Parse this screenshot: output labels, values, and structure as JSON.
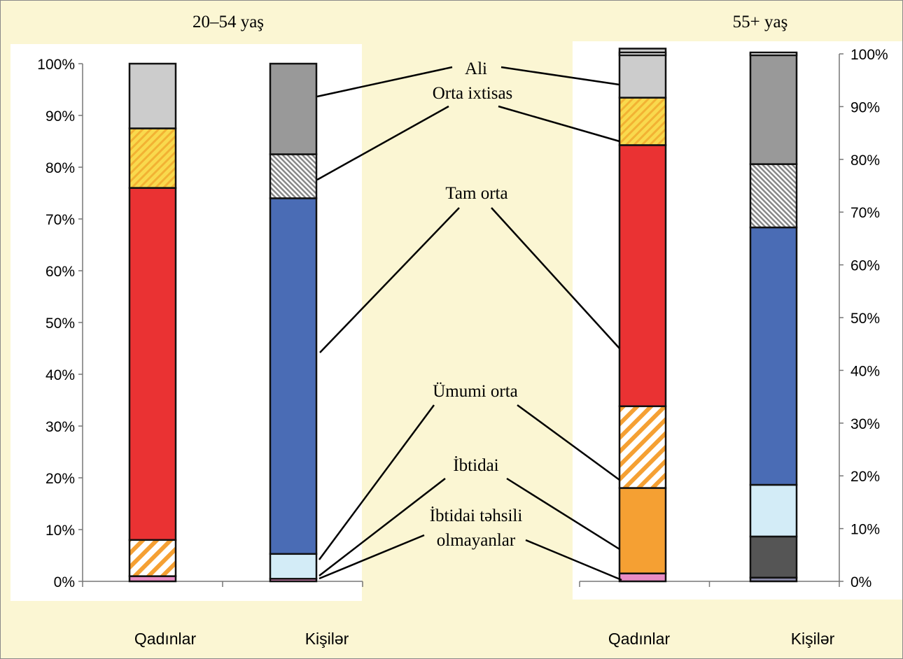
{
  "chart_data": {
    "type": "bar",
    "stacked": true,
    "normalized": true,
    "ylim": [
      0,
      100
    ],
    "y_ticks": [
      "0%",
      "10%",
      "20%",
      "30%",
      "40%",
      "50%",
      "60%",
      "70%",
      "80%",
      "90%",
      "100%"
    ],
    "categories": [
      "Qadınlar",
      "Kişilər"
    ],
    "groups": [
      {
        "title": "20–54 yaş",
        "axis": "left",
        "bars": [
          {
            "category": "Qadınlar",
            "segments": [
              {
                "name": "İbtidai təhsili olmayanlar",
                "value": 1.0,
                "color": "#e88cc4"
              },
              {
                "name": "İbtidai",
                "value": 0.0,
                "color": "#f5a033"
              },
              {
                "name": "Ümumi orta",
                "value": 7.0,
                "color": "#f5a033",
                "pattern": "hatch"
              },
              {
                "name": "Tam orta",
                "value": 68.0,
                "color": "#ea3233"
              },
              {
                "name": "Orta ixtisas",
                "value": 11.5,
                "color": "#f9d94d",
                "pattern": "hatch"
              },
              {
                "name": "Ali",
                "value": 12.5,
                "color": "#cccccc"
              }
            ]
          },
          {
            "category": "Kişilər",
            "segments": [
              {
                "name": "İbtidai təhsili olmayanlar",
                "value": 0.5,
                "color": "#e88cc4"
              },
              {
                "name": "İbtidai",
                "value": 0.0,
                "color": "#555555"
              },
              {
                "name": "Ümumi orta",
                "value": 4.8,
                "color": "#d3ecf7"
              },
              {
                "name": "Tam orta",
                "value": 68.7,
                "color": "#4a6cb5"
              },
              {
                "name": "Orta ixtisas",
                "value": 8.5,
                "color": "#aaaaaa",
                "pattern": "hatch"
              },
              {
                "name": "Ali",
                "value": 17.5,
                "color": "#999999"
              }
            ]
          }
        ]
      },
      {
        "title": "55+ yaş",
        "axis": "right",
        "bars": [
          {
            "category": "Qadınlar",
            "segments": [
              {
                "name": "İbtidai təhsili olmayanlar",
                "value": 1.5,
                "color": "#e88cc4"
              },
              {
                "name": "İbtidai",
                "value": 16.2,
                "color": "#f5a033"
              },
              {
                "name": "Ümumi orta",
                "value": 15.5,
                "color": "#f5a033",
                "pattern": "hatch"
              },
              {
                "name": "Tam orta",
                "value": 49.5,
                "color": "#ea3233"
              },
              {
                "name": "Orta ixtisas",
                "value": 9.0,
                "color": "#f9d94d",
                "pattern": "hatch"
              },
              {
                "name": "Ali",
                "value": 9.3,
                "color": "#cccccc"
              }
            ]
          },
          {
            "category": "Kişilər",
            "segments": [
              {
                "name": "İbtidai təhsili olmayanlar",
                "value": 0.7,
                "color": "#8a8aa8"
              },
              {
                "name": "İbtidai",
                "value": 7.8,
                "color": "#555555"
              },
              {
                "name": "Ümumi orta",
                "value": 9.8,
                "color": "#d3ecf7"
              },
              {
                "name": "Tam orta",
                "value": 48.8,
                "color": "#4a6cb5"
              },
              {
                "name": "Orta ixtisas",
                "value": 12.0,
                "color": "#aaaaaa",
                "pattern": "hatch"
              },
              {
                "name": "Ali",
                "value": 21.0,
                "color": "#999999"
              }
            ]
          }
        ]
      }
    ],
    "labels": [
      "Ali",
      "Orta ixtisas",
      "Tam orta",
      "Ümumi orta",
      "İbtidai",
      "İbtidai təhsili",
      "olmayanlar"
    ]
  }
}
